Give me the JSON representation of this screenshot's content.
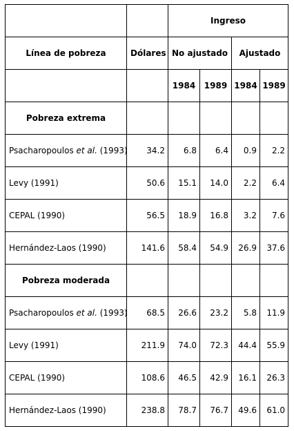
{
  "header": {
    "ingreso": "Ingreso",
    "linea": "Línea de pobreza",
    "dolares": "Dólares",
    "no_ajustado": "No ajustado",
    "ajustado": "Ajustado",
    "years": [
      "1984",
      "1989",
      "1984",
      "1989"
    ]
  },
  "sections": [
    {
      "title": "Pobreza extrema",
      "rows": [
        {
          "source_a": "Psacharopoulos ",
          "source_it": "et al.",
          "source_b": " (1993)",
          "dolares": "34.2",
          "vals": [
            "6.8",
            "6.4",
            "0.9",
            "2.2"
          ]
        },
        {
          "source_a": "Levy (1991)",
          "source_it": "",
          "source_b": "",
          "dolares": "50.6",
          "vals": [
            "15.1",
            "14.0",
            "2.2",
            "6.4"
          ]
        },
        {
          "source_a": "CEPAL (1990)",
          "source_it": "",
          "source_b": "",
          "dolares": "56.5",
          "vals": [
            "18.9",
            "16.8",
            "3.2",
            "7.6"
          ]
        },
        {
          "source_a": "Hernández-Laos (1990)",
          "source_it": "",
          "source_b": "",
          "dolares": "141.6",
          "vals": [
            "58.4",
            "54.9",
            "26.9",
            "37.6"
          ]
        }
      ]
    },
    {
      "title": "Pobreza moderada",
      "rows": [
        {
          "source_a": "Psacharopoulos ",
          "source_it": "et al.",
          "source_b": " (1993)",
          "dolares": "68.5",
          "vals": [
            "26.6",
            "23.2",
            "5.8",
            "11.9"
          ]
        },
        {
          "source_a": "Levy (1991)",
          "source_it": "",
          "source_b": "",
          "dolares": "211.9",
          "vals": [
            "74.0",
            "72.3",
            "44.4",
            "55.9"
          ]
        },
        {
          "source_a": "CEPAL (1990)",
          "source_it": "",
          "source_b": "",
          "dolares": "108.6",
          "vals": [
            "46.5",
            "42.9",
            "16.1",
            "26.3"
          ]
        },
        {
          "source_a": "Hernández-Laos (1990)",
          "source_it": "",
          "source_b": "",
          "dolares": "238.8",
          "vals": [
            "78.7",
            "76.7",
            "49.6",
            "61.0"
          ]
        }
      ]
    }
  ]
}
